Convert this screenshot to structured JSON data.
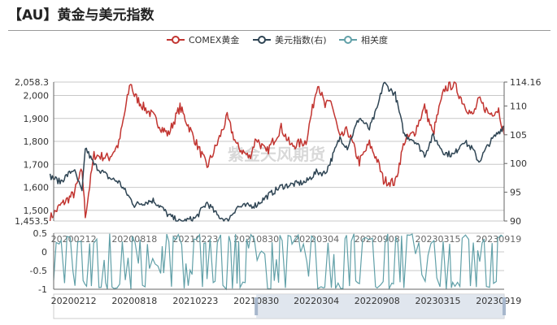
{
  "title": "【AU】黄金与美元指数",
  "watermark": "紫金天风期货",
  "colors": {
    "gold": "#c23531",
    "usd": "#2f4554",
    "corr": "#61a0a8",
    "grid": "#c8c8c8",
    "slider_fill": "#d6dde8"
  },
  "legend": [
    {
      "name": "COMEX黄金",
      "color": "#c23531"
    },
    {
      "name": "美元指数(右)",
      "color": "#2f4554"
    },
    {
      "name": "相关度",
      "color": "#61a0a8"
    }
  ],
  "chart_data": [
    {
      "type": "line",
      "title": "【AU】黄金与美元指数",
      "x_ticks": [
        "20200212",
        "20200818",
        "20210223",
        "20210830",
        "20220304",
        "20220908",
        "20230315",
        "20230919"
      ],
      "y_left": {
        "ylim": [
          1453.5,
          2058.3
        ],
        "ticks": [
          "2,058.3",
          "2,000",
          "1,900",
          "1,800",
          "1,700",
          "1,600",
          "1,500",
          "1,453.5"
        ]
      },
      "y_right": {
        "ylim": [
          90,
          114.16
        ],
        "ticks": [
          "114.16",
          "110",
          "105",
          "100",
          "95",
          "90"
        ]
      },
      "series": [
        {
          "name": "COMEX黄金",
          "axis": "left",
          "points": [
            [
              "20191201",
              1465
            ],
            [
              "20200101",
              1520
            ],
            [
              "20200212",
              1570
            ],
            [
              "20200309",
              1675
            ],
            [
              "20200319",
              1475
            ],
            [
              "20200415",
              1740
            ],
            [
              "20200601",
              1730
            ],
            [
              "20200701",
              1790
            ],
            [
              "20200806",
              2058
            ],
            [
              "20200818",
              2000
            ],
            [
              "20200915",
              1950
            ],
            [
              "20201015",
              1910
            ],
            [
              "20201109",
              1860
            ],
            [
              "20201201",
              1830
            ],
            [
              "20210106",
              1950
            ],
            [
              "20210223",
              1800
            ],
            [
              "20210331",
              1690
            ],
            [
              "20210501",
              1790
            ],
            [
              "20210601",
              1905
            ],
            [
              "20210701",
              1780
            ],
            [
              "20210809",
              1730
            ],
            [
              "20210830",
              1815
            ],
            [
              "20210930",
              1750
            ],
            [
              "20211115",
              1860
            ],
            [
              "20211215",
              1780
            ],
            [
              "20220131",
              1800
            ],
            [
              "20220308",
              2058
            ],
            [
              "20220331",
              1950
            ],
            [
              "20220418",
              1980
            ],
            [
              "20220516",
              1810
            ],
            [
              "20220608",
              1850
            ],
            [
              "20220715",
              1710
            ],
            [
              "20220815",
              1790
            ],
            [
              "20220908",
              1720
            ],
            [
              "20220928",
              1630
            ],
            [
              "20221103",
              1620
            ],
            [
              "20221201",
              1800
            ],
            [
              "20230102",
              1840
            ],
            [
              "20230202",
              1950
            ],
            [
              "20230228",
              1830
            ],
            [
              "20230315",
              1920
            ],
            [
              "20230405",
              2030
            ],
            [
              "20230504",
              2050
            ],
            [
              "20230601",
              1970
            ],
            [
              "20230630",
              1910
            ],
            [
              "20230720",
              1980
            ],
            [
              "20230821",
              1920
            ],
            [
              "20230919",
              1940
            ],
            [
              "20231006",
              1830
            ]
          ]
        },
        {
          "name": "美元指数(右)",
          "axis": "right",
          "points": [
            [
              "20191201",
              97.8
            ],
            [
              "20200101",
              96.8
            ],
            [
              "20200212",
              99.0
            ],
            [
              "20200309",
              95.0
            ],
            [
              "20200319",
              102.8
            ],
            [
              "20200415",
              99.8
            ],
            [
              "20200601",
              97.5
            ],
            [
              "20200701",
              96.8
            ],
            [
              "20200818",
              92.8
            ],
            [
              "20200915",
              93.2
            ],
            [
              "20201015",
              93.6
            ],
            [
              "20201109",
              92.4
            ],
            [
              "20201201",
              91.0
            ],
            [
              "20210106",
              89.8
            ],
            [
              "20210223",
              90.5
            ],
            [
              "20210331",
              93.2
            ],
            [
              "20210501",
              91.0
            ],
            [
              "20210601",
              90.0
            ],
            [
              "20210701",
              92.4
            ],
            [
              "20210830",
              92.8
            ],
            [
              "20210930",
              94.2
            ],
            [
              "20211115",
              96.0
            ],
            [
              "20211215",
              96.3
            ],
            [
              "20220131",
              96.8
            ],
            [
              "20220304",
              98.5
            ],
            [
              "20220331",
              98.3
            ],
            [
              "20220418",
              100.5
            ],
            [
              "20220516",
              104.5
            ],
            [
              "20220608",
              102.8
            ],
            [
              "20220715",
              108.0
            ],
            [
              "20220815",
              106.0
            ],
            [
              "20220908",
              109.5
            ],
            [
              "20220928",
              114.0
            ],
            [
              "20221103",
              112.0
            ],
            [
              "20221201",
              105.0
            ],
            [
              "20230102",
              104.0
            ],
            [
              "20230202",
              101.5
            ],
            [
              "20230228",
              104.8
            ],
            [
              "20230315",
              103.5
            ],
            [
              "20230405",
              101.8
            ],
            [
              "20230504",
              101.5
            ],
            [
              "20230601",
              104.0
            ],
            [
              "20230630",
              102.5
            ],
            [
              "20230720",
              100.3
            ],
            [
              "20230821",
              103.5
            ],
            [
              "20230919",
              105.5
            ],
            [
              "20231006",
              106.5
            ]
          ]
        }
      ]
    },
    {
      "type": "line",
      "x_ticks": [
        "20200212",
        "20200818",
        "20210223",
        "20210830",
        "20220304",
        "20220908",
        "20230315",
        "20230919"
      ],
      "y": {
        "ylim": [
          -1,
          0.5
        ],
        "ticks": [
          "0.5",
          "0",
          "-0.5",
          "-1"
        ]
      },
      "series": [
        {
          "name": "相关度",
          "description_values": "oscillates rapidly between -1 and 0.5",
          "range": [
            -1,
            0.5
          ]
        }
      ]
    }
  ],
  "slider": {
    "labels": [
      "20200212",
      "20200818",
      "20210223",
      "20210830",
      "20220304",
      "20220908",
      "20230315",
      "20230919"
    ],
    "start_date": "20210830",
    "end_date": "20231006"
  }
}
